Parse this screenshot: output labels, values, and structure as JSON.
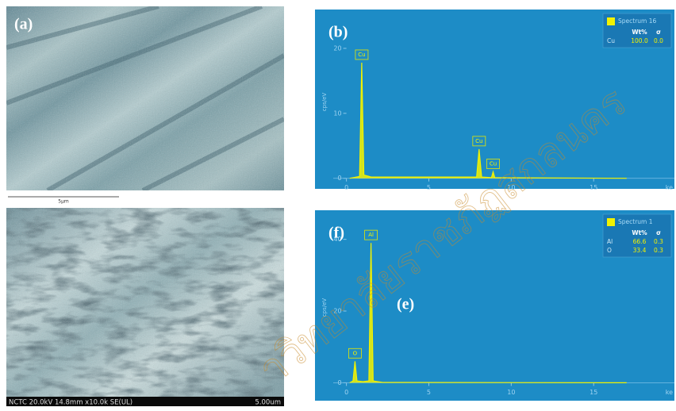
{
  "images": [
    {
      "label": "(a)",
      "scale_label": "5µm"
    },
    {
      "footer": "NCTC 20.0kV 14.8mm x10.0k SE(UL)",
      "scale_label": "5.00um"
    }
  ],
  "watermark": "าวิทยาลัยราชภัฏสกลนคร",
  "chart_data": [
    {
      "type": "line",
      "panel_label": "(b)",
      "ylabel": "cps/eV",
      "xlabel": "ke",
      "x": [
        0.2,
        0.8,
        0.93,
        1.06,
        1.5,
        7.9,
        8.05,
        8.2,
        8.8,
        8.9,
        9.0,
        17
      ],
      "series": [
        {
          "name": "Spectrum 16",
          "color": "#f2f200",
          "values": [
            0,
            0.3,
            17.8,
            0.5,
            0.2,
            0.2,
            4.5,
            0.2,
            0.1,
            1,
            0.1,
            0
          ]
        }
      ],
      "annotations": [
        {
          "text": "Cu",
          "x": 0.93,
          "y": 17.8
        },
        {
          "text": "Cu",
          "x": 8.05,
          "y": 4.5
        },
        {
          "text": "Cu",
          "x": 8.9,
          "y": 1
        }
      ],
      "legend": {
        "columns": [
          "Wt%",
          "σ"
        ],
        "rows": [
          [
            "Cu",
            "100.0",
            "0.0"
          ]
        ]
      },
      "xlim": [
        -0.8,
        19.9
      ],
      "xticks": [
        0,
        5,
        10,
        15
      ],
      "ylim": [
        -1.5,
        25
      ],
      "yticks": [
        0,
        10,
        20
      ],
      "background": "#1d8cc6"
    },
    {
      "type": "line",
      "panel_label": "(f)",
      "ylabel": "cps/eV",
      "xlabel": "ke",
      "inset_label": "(e)",
      "x": [
        0.2,
        0.4,
        0.52,
        0.64,
        1.0,
        1.36,
        1.49,
        1.62,
        2.2,
        17
      ],
      "series": [
        {
          "name": "Spectrum 1",
          "color": "#f2f200",
          "values": [
            0,
            0.5,
            6,
            0.5,
            0.3,
            0.5,
            39,
            0.5,
            0.1,
            0
          ]
        }
      ],
      "annotations": [
        {
          "text": "O",
          "x": 0.52,
          "y": 6
        },
        {
          "text": "Al",
          "x": 1.49,
          "y": 39
        }
      ],
      "legend": {
        "columns": [
          "Wt%",
          "σ"
        ],
        "rows": [
          [
            "Al",
            "66.6",
            "0.3"
          ],
          [
            "O",
            "33.4",
            "0.3"
          ]
        ]
      },
      "xlim": [
        -0.8,
        19.9
      ],
      "xticks": [
        0,
        5,
        10,
        15
      ],
      "ylim": [
        -5,
        47
      ],
      "yticks": [
        0,
        20,
        40
      ],
      "background": "#1d8cc6"
    }
  ]
}
